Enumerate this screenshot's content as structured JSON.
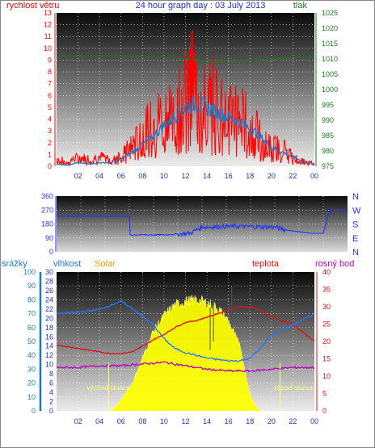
{
  "page_title": "24 hour graph day : 03 July 2013",
  "colors": {
    "wind": "#ff0000",
    "gust": "#1e78c8",
    "pressure": "#1a7a1a",
    "direction": "#1e32ff",
    "humidity": "#1e78ff",
    "temperature": "#e01010",
    "dewpoint": "#c000c0",
    "solar": "#ffff00",
    "rain": "#1e78c8",
    "sunrise": "#ffff80",
    "axis_left_top": "#ff0000",
    "axis_right_top": "#1a7a1a",
    "axis_dir": "#1e32ff",
    "axis_solar": "#ff9900"
  },
  "chart_data": [
    {
      "type": "line",
      "title": "24 hour graph day : 03 July 2013",
      "xlabel": "",
      "x_ticks": [
        "02",
        "04",
        "06",
        "08",
        "10",
        "12",
        "14",
        "16",
        "18",
        "20",
        "22",
        "00"
      ],
      "left_axis": {
        "label": "rychlost větru",
        "ylim": [
          0,
          13
        ],
        "ticks": [
          0,
          1,
          2,
          3,
          4,
          5,
          6,
          7,
          8,
          9,
          10,
          11,
          12,
          13
        ]
      },
      "right_axis": {
        "label": "tlak",
        "ylim": [
          975,
          1025
        ],
        "ticks": [
          975,
          980,
          985,
          990,
          995,
          1000,
          1005,
          1010,
          1015,
          1020,
          1025
        ]
      },
      "series": [
        {
          "name": "rychlost větru",
          "axis": "left",
          "x": [
            0,
            1,
            2,
            3,
            4,
            5,
            6,
            7,
            8,
            9,
            10,
            11,
            12,
            12.5,
            13,
            14,
            15,
            16,
            17,
            18,
            19,
            20,
            21,
            22,
            23,
            24
          ],
          "y": [
            0.8,
            0.5,
            0.9,
            0.8,
            1.0,
            0.8,
            1.2,
            2.0,
            3.5,
            4.5,
            5.5,
            6.5,
            7.5,
            9.0,
            8.0,
            7.0,
            7.0,
            6.0,
            5.5,
            4.5,
            3.0,
            2.0,
            2.0,
            1.0,
            0.5,
            0.3
          ]
        },
        {
          "name": "",
          "axis": "left",
          "x": [
            0,
            1,
            2,
            3,
            4,
            5,
            6,
            7,
            8,
            9,
            10,
            11,
            12,
            13,
            14,
            15,
            16,
            17,
            18,
            19,
            20,
            21,
            22,
            23,
            24
          ],
          "y": [
            0.2,
            0.1,
            0.3,
            0.2,
            0.3,
            0.3,
            0.6,
            1.2,
            1.8,
            2.5,
            3.5,
            4.2,
            5.0,
            5.3,
            5.0,
            4.5,
            4.2,
            3.8,
            3.2,
            2.5,
            1.6,
            1.2,
            0.8,
            0.4,
            0.2
          ]
        },
        {
          "name": "tlak",
          "axis": "right",
          "x": [
            0,
            2,
            4,
            6,
            8,
            10,
            12,
            14,
            16,
            18,
            20,
            22,
            24
          ],
          "y": [
            1011,
            1011,
            1011,
            1011,
            1010.8,
            1010.5,
            1010,
            1009.5,
            1009.5,
            1009.5,
            1010,
            1010.5,
            1010.5
          ]
        }
      ]
    },
    {
      "type": "line",
      "left_axis": {
        "ylim": [
          0,
          360
        ],
        "ticks": [
          0,
          90,
          180,
          270,
          360
        ]
      },
      "right_axis_labels": [
        "N",
        "W",
        "S",
        "E",
        "N"
      ],
      "series": [
        {
          "name": "",
          "x": [
            0,
            3,
            6,
            6,
            9,
            11,
            12,
            15,
            18,
            19,
            21,
            22,
            22.5,
            24
          ],
          "y": [
            230,
            230,
            230,
            110,
            110,
            120,
            160,
            165,
            160,
            140,
            120,
            120,
            270,
            270
          ]
        }
      ]
    },
    {
      "type": "line",
      "legend": [
        "srážky",
        "vlhkost",
        "Solar",
        "teplota",
        "rosný bod"
      ],
      "axes": {
        "srazky": {
          "label": "srážky",
          "ylim": [
            0,
            100
          ],
          "ticks": [
            0,
            10,
            20,
            30,
            40,
            50,
            60,
            70,
            80,
            90,
            100
          ]
        },
        "vlhkost": {
          "label": "vlhkost",
          "ylim": [
            0,
            30
          ],
          "ticks": [
            0,
            2,
            4,
            6,
            8,
            10,
            12,
            14,
            16,
            18,
            20,
            22,
            24,
            26,
            28,
            30
          ]
        },
        "teplota": {
          "label": "teplota",
          "ylim": [
            0,
            40
          ],
          "ticks": [
            0,
            5,
            10,
            15,
            20,
            25,
            30,
            35,
            40
          ]
        }
      },
      "annotations": [
        "východ slunce",
        "západ slunce"
      ],
      "series": [
        {
          "name": "vlhkost",
          "axis": "srazky",
          "x": [
            0,
            2,
            4,
            5,
            6,
            7,
            8,
            9,
            10,
            11,
            12,
            13,
            14,
            15,
            16,
            17,
            18,
            19,
            20,
            22,
            24
          ],
          "y": [
            70,
            71,
            73,
            76,
            79,
            74,
            68,
            62,
            52,
            45,
            42,
            40,
            38,
            37,
            36,
            36,
            38,
            45,
            55,
            62,
            70
          ]
        },
        {
          "name": "teplota",
          "axis": "teplota",
          "x": [
            0,
            2,
            4,
            5,
            6,
            7,
            8,
            9,
            10,
            11,
            12,
            13,
            14,
            15,
            16,
            17,
            18,
            19,
            20,
            22,
            24
          ],
          "y": [
            19,
            18,
            17,
            16.5,
            16.5,
            17,
            18.5,
            20.5,
            22,
            24,
            25.5,
            26,
            27,
            28,
            29,
            30,
            30,
            29,
            27,
            25,
            20
          ]
        },
        {
          "name": "rosný bod",
          "axis": "teplota",
          "x": [
            0,
            2,
            4,
            6,
            8,
            10,
            12,
            14,
            16,
            18,
            20,
            22,
            24
          ],
          "y": [
            12.5,
            12.5,
            13,
            13,
            13.5,
            14,
            13,
            12,
            11.5,
            11.5,
            12,
            12.5,
            12.5
          ]
        },
        {
          "name": "Solar",
          "axis": "srazky",
          "x": [
            4.5,
            5,
            5.5,
            6,
            7,
            8,
            9,
            10,
            11,
            12,
            13,
            14,
            15,
            16,
            17,
            17.5,
            18,
            18.5,
            19
          ],
          "y": [
            0,
            0,
            3,
            8,
            20,
            40,
            60,
            72,
            80,
            83,
            84,
            82,
            78,
            68,
            50,
            30,
            12,
            4,
            0
          ]
        }
      ]
    }
  ]
}
